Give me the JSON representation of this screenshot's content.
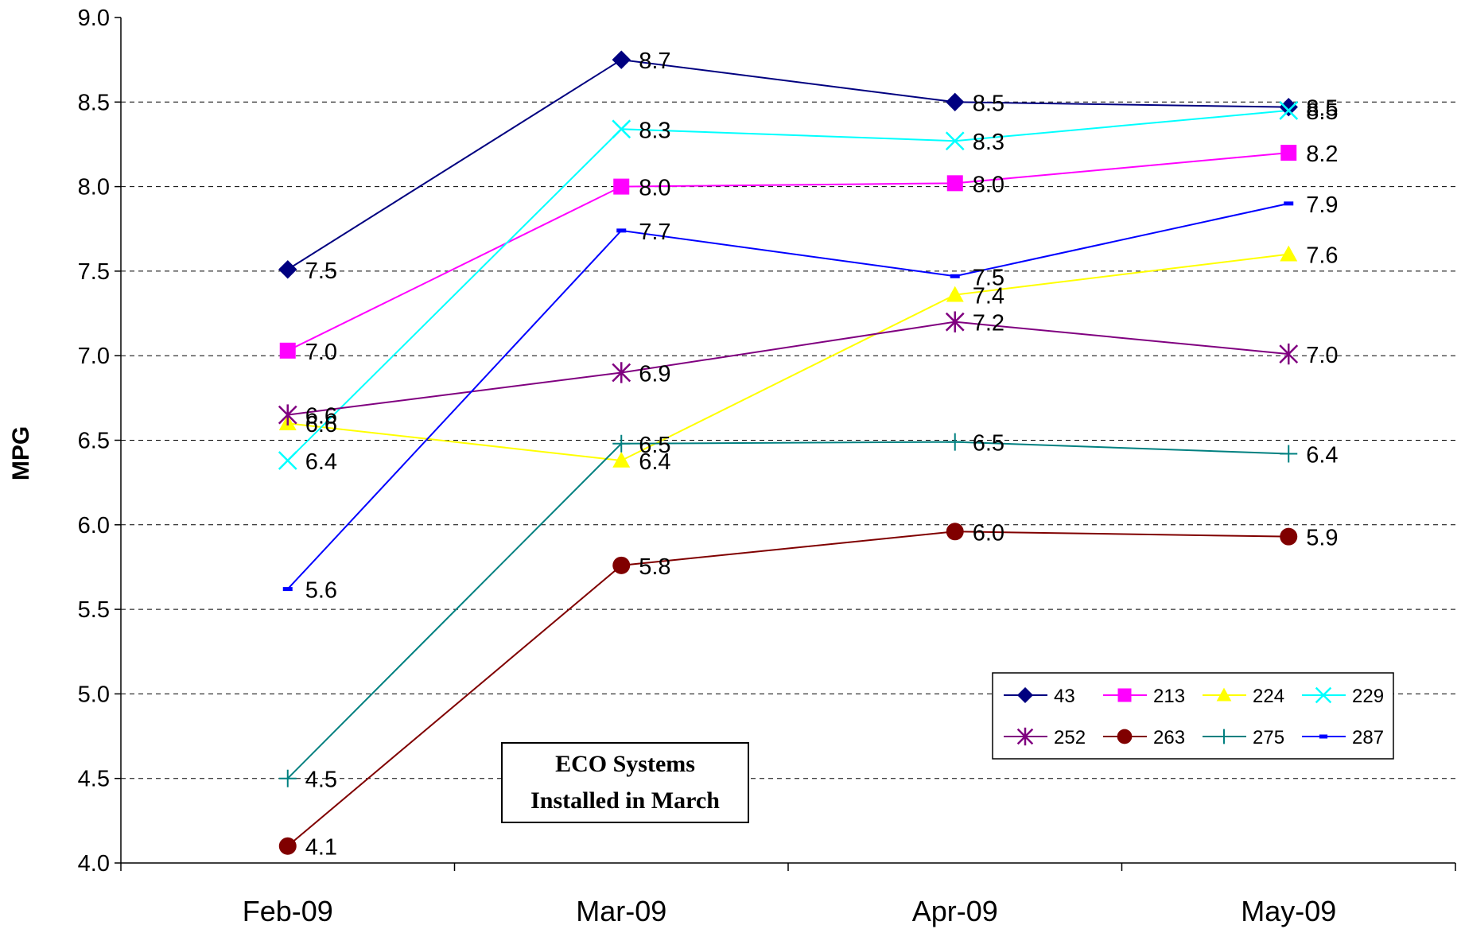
{
  "chart_data": {
    "type": "line",
    "categories": [
      "Feb-09",
      "Mar-09",
      "Apr-09",
      "May-09"
    ],
    "ylabel": "MPG",
    "xlabel": "",
    "ylim": [
      4.0,
      9.0
    ],
    "yticks": [
      "4.0",
      "4.5",
      "5.0",
      "5.5",
      "6.0",
      "6.5",
      "7.0",
      "7.5",
      "8.0",
      "8.5",
      "9.0"
    ],
    "grid": "horizontal dashed",
    "legend_position": "bottom-right inside plot",
    "annotation": [
      "ECO Systems",
      "Installed in March"
    ],
    "series": [
      {
        "name": "43",
        "color": "#000080",
        "marker": "diamond",
        "values": [
          7.51,
          8.75,
          8.5,
          8.47
        ],
        "labels": [
          "7.5",
          "8.7",
          "8.5",
          "8.5"
        ]
      },
      {
        "name": "213",
        "color": "#ff00ff",
        "marker": "square",
        "values": [
          7.03,
          8.0,
          8.02,
          8.2
        ],
        "labels": [
          "7.0",
          "8.0",
          "8.0",
          "8.2"
        ]
      },
      {
        "name": "224",
        "color": "#ffff00",
        "marker": "triangle",
        "values": [
          6.6,
          6.38,
          7.36,
          7.6
        ],
        "labels": [
          "6.6",
          "6.4",
          "7.4",
          "7.6"
        ]
      },
      {
        "name": "229",
        "color": "#00ffff",
        "marker": "x",
        "values": [
          6.38,
          8.34,
          8.27,
          8.45
        ],
        "labels": [
          "6.4",
          "8.3",
          "8.3",
          "8.5"
        ]
      },
      {
        "name": "252",
        "color": "#800080",
        "marker": "star",
        "values": [
          6.65,
          6.9,
          7.2,
          7.01
        ],
        "labels": [
          "6.6",
          "6.9",
          "7.2",
          "7.0"
        ]
      },
      {
        "name": "263",
        "color": "#800000",
        "marker": "circle",
        "values": [
          4.1,
          5.76,
          5.96,
          5.93
        ],
        "labels": [
          "4.1",
          "5.8",
          "6.0",
          "5.9"
        ]
      },
      {
        "name": "275",
        "color": "#008080",
        "marker": "plus",
        "values": [
          4.5,
          6.48,
          6.49,
          6.42
        ],
        "labels": [
          "4.5",
          "6.5",
          "6.5",
          "6.4"
        ]
      },
      {
        "name": "287",
        "color": "#0000ff",
        "marker": "dash",
        "values": [
          5.62,
          7.74,
          7.47,
          7.9
        ],
        "labels": [
          "5.6",
          "7.7",
          "7.5",
          "7.9"
        ]
      }
    ]
  }
}
